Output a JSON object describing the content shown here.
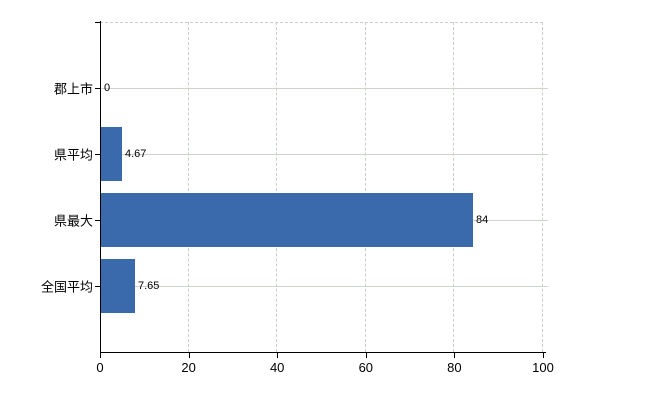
{
  "chart_data": {
    "type": "bar",
    "orientation": "horizontal",
    "title": "",
    "xlabel": "",
    "ylabel": "",
    "categories": [
      "郡上市",
      "県平均",
      "県最大",
      "全国平均"
    ],
    "values": [
      0,
      4.67,
      84,
      7.65
    ],
    "value_labels": [
      "0",
      "4.67",
      "84",
      "7.65"
    ],
    "xlim": [
      0,
      100
    ],
    "x_ticks": [
      0,
      20,
      40,
      60,
      80,
      100
    ],
    "grid": "vertical dashed + horizontal solid at category rows",
    "legend": false,
    "colors": {
      "bar": "#3a69ac",
      "axis": "#000000",
      "gridline": "#ccd4cc",
      "dashed_border": "#c9cfc7",
      "text": "#000000",
      "background": "#ffffff"
    }
  }
}
